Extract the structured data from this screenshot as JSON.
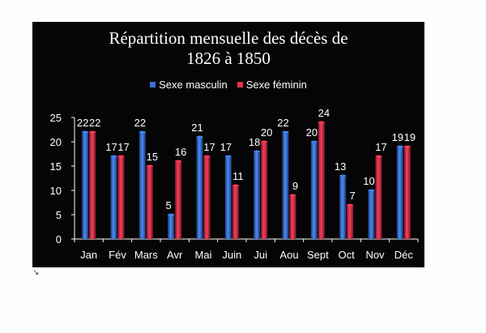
{
  "chart_data": {
    "type": "bar",
    "title_line1": "Répartition mensuelle des décès de",
    "title_line2": "1826 à 1850",
    "categories": [
      "Jan",
      "Fév",
      "Mars",
      "Avr",
      "Mai",
      "Juin",
      "Jui",
      "Aou",
      "Sept",
      "Oct",
      "Nov",
      "Déc"
    ],
    "series": [
      {
        "name": "Sexe masculin",
        "color": "#3a6fd0",
        "values": [
          22,
          17,
          22,
          5,
          21,
          17,
          18,
          22,
          20,
          13,
          10,
          19
        ]
      },
      {
        "name": "Sexe féminin",
        "color": "#e8304a",
        "values": [
          22,
          17,
          15,
          16,
          17,
          11,
          20,
          9,
          24,
          7,
          17,
          19
        ]
      }
    ],
    "y_ticks": [
      "0",
      "5",
      "10",
      "15",
      "20",
      "25"
    ],
    "ylim": [
      0,
      25
    ],
    "legend_position": "top",
    "grid": false
  }
}
